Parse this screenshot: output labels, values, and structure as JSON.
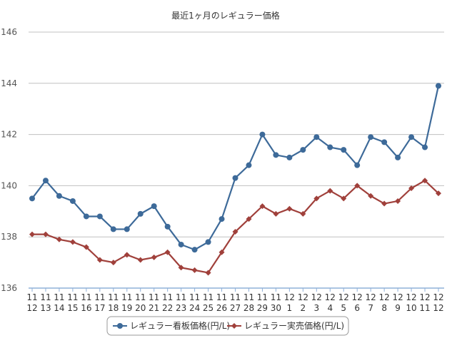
{
  "chart_data": {
    "type": "line",
    "title": "最近1ヶ月のレギュラー価格",
    "xlabel": "",
    "ylabel": "",
    "ylim": [
      136,
      146
    ],
    "yticks": [
      136,
      138,
      140,
      142,
      144,
      146
    ],
    "grid": true,
    "legend_position": "bottom",
    "categories": [
      [
        "11",
        "12"
      ],
      [
        "11",
        "13"
      ],
      [
        "11",
        "14"
      ],
      [
        "11",
        "15"
      ],
      [
        "11",
        "16"
      ],
      [
        "11",
        "17"
      ],
      [
        "11",
        "18"
      ],
      [
        "11",
        "19"
      ],
      [
        "11",
        "20"
      ],
      [
        "11",
        "21"
      ],
      [
        "11",
        "22"
      ],
      [
        "11",
        "23"
      ],
      [
        "11",
        "24"
      ],
      [
        "11",
        "25"
      ],
      [
        "11",
        "26"
      ],
      [
        "11",
        "27"
      ],
      [
        "11",
        "28"
      ],
      [
        "11",
        "29"
      ],
      [
        "11",
        "30"
      ],
      [
        "12",
        "1"
      ],
      [
        "12",
        "2"
      ],
      [
        "12",
        "3"
      ],
      [
        "12",
        "4"
      ],
      [
        "12",
        "5"
      ],
      [
        "12",
        "6"
      ],
      [
        "12",
        "7"
      ],
      [
        "12",
        "8"
      ],
      [
        "12",
        "9"
      ],
      [
        "12",
        "10"
      ],
      [
        "12",
        "11"
      ],
      [
        "12",
        "12"
      ]
    ],
    "series": [
      {
        "name": "レギュラー看板価格(円/L)",
        "color": "#3d6a99",
        "marker": "circle",
        "values": [
          139.5,
          140.2,
          139.6,
          139.4,
          138.8,
          138.8,
          138.3,
          138.3,
          138.9,
          139.2,
          138.4,
          137.7,
          137.5,
          137.8,
          138.7,
          140.3,
          140.8,
          142.0,
          141.2,
          141.1,
          141.4,
          141.9,
          141.5,
          141.4,
          140.8,
          141.9,
          141.7,
          141.1,
          141.9,
          141.5,
          143.9
        ]
      },
      {
        "name": "レギュラー実売価格(円/L)",
        "color": "#a0403b",
        "marker": "diamond",
        "values": [
          138.1,
          138.1,
          137.9,
          137.8,
          137.6,
          137.1,
          137.0,
          137.3,
          137.1,
          137.2,
          137.4,
          136.8,
          136.7,
          136.6,
          137.4,
          138.2,
          138.7,
          139.2,
          138.9,
          139.1,
          138.9,
          139.5,
          139.8,
          139.5,
          140.0,
          139.6,
          139.3,
          139.4,
          139.9,
          140.2,
          139.7
        ]
      }
    ]
  }
}
